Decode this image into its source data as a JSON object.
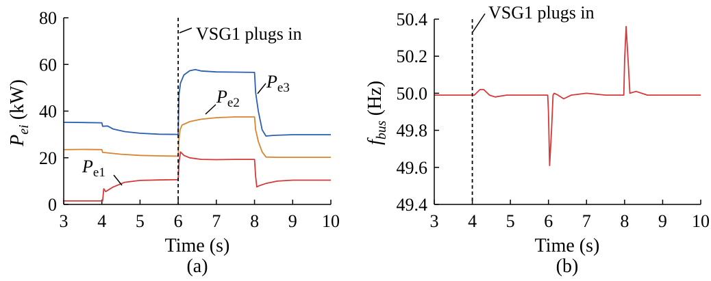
{
  "chart_data": [
    {
      "type": "line",
      "caption": "(a)",
      "xlabel": "Time (s)",
      "ylabel": {
        "main": "P",
        "sub": "ei",
        "unit": " (kW)"
      },
      "xlim": [
        3,
        10
      ],
      "ylim": [
        0,
        80
      ],
      "xticks": [
        3,
        4,
        5,
        6,
        7,
        8,
        9,
        10
      ],
      "yticks": [
        0,
        20,
        40,
        60,
        80
      ],
      "event": {
        "x": 6,
        "label": "VSG1 plugs in"
      },
      "series": [
        {
          "name": "P_e3",
          "label_main": "P",
          "label_sub": "e3",
          "color": "#2a5fb0",
          "points": [
            [
              3,
              35.2
            ],
            [
              3.5,
              35.1
            ],
            [
              4.0,
              35.0
            ],
            [
              4.02,
              33.5
            ],
            [
              4.15,
              33.6
            ],
            [
              4.3,
              32.3
            ],
            [
              4.6,
              31.2
            ],
            [
              5.0,
              30.5
            ],
            [
              5.5,
              30.1
            ],
            [
              6.0,
              30.0
            ],
            [
              6.02,
              47
            ],
            [
              6.06,
              52
            ],
            [
              6.15,
              55.5
            ],
            [
              6.3,
              57.3
            ],
            [
              6.45,
              57.8
            ],
            [
              6.6,
              57.2
            ],
            [
              7.0,
              56.8
            ],
            [
              7.5,
              56.7
            ],
            [
              8.0,
              56.6
            ],
            [
              8.03,
              48
            ],
            [
              8.1,
              40
            ],
            [
              8.2,
              32
            ],
            [
              8.3,
              29.3
            ],
            [
              8.5,
              29.6
            ],
            [
              9.0,
              29.9
            ],
            [
              10,
              29.9
            ]
          ]
        },
        {
          "name": "P_e2",
          "label_main": "P",
          "label_sub": "e2",
          "color": "#d9842e",
          "points": [
            [
              3,
              23.5
            ],
            [
              3.5,
              23.6
            ],
            [
              4.0,
              23.5
            ],
            [
              4.02,
              22.3
            ],
            [
              4.2,
              22.0
            ],
            [
              4.5,
              21.5
            ],
            [
              5.0,
              21.0
            ],
            [
              5.5,
              20.8
            ],
            [
              6.0,
              20.7
            ],
            [
              6.02,
              28
            ],
            [
              6.05,
              32
            ],
            [
              6.1,
              34.0
            ],
            [
              6.3,
              35.5
            ],
            [
              6.6,
              36.5
            ],
            [
              7.0,
              37.2
            ],
            [
              7.5,
              37.5
            ],
            [
              8.0,
              37.5
            ],
            [
              8.03,
              32
            ],
            [
              8.1,
              27
            ],
            [
              8.2,
              22.5
            ],
            [
              8.3,
              20.3
            ],
            [
              8.6,
              20.2
            ],
            [
              10,
              20.2
            ]
          ]
        },
        {
          "name": "P_e1",
          "label_main": "P",
          "label_sub": "e1",
          "color": "#d43838",
          "points": [
            [
              3,
              1.5
            ],
            [
              3.5,
              1.5
            ],
            [
              4.0,
              1.5
            ],
            [
              4.02,
              1.5
            ],
            [
              4.05,
              6.7
            ],
            [
              4.1,
              5.5
            ],
            [
              4.3,
              7.5
            ],
            [
              4.6,
              9.5
            ],
            [
              5.0,
              10.3
            ],
            [
              5.5,
              10.5
            ],
            [
              6.0,
              10.6
            ],
            [
              6.02,
              18
            ],
            [
              6.06,
              22.5
            ],
            [
              6.15,
              21.0
            ],
            [
              6.3,
              20.0
            ],
            [
              6.6,
              19.3
            ],
            [
              7.0,
              19.2
            ],
            [
              7.5,
              19.3
            ],
            [
              8.0,
              19.3
            ],
            [
              8.03,
              12
            ],
            [
              8.06,
              7.5
            ],
            [
              8.12,
              8.0
            ],
            [
              8.3,
              9.0
            ],
            [
              8.6,
              10.0
            ],
            [
              9.0,
              10.4
            ],
            [
              10,
              10.4
            ]
          ]
        }
      ]
    },
    {
      "type": "line",
      "caption": "(b)",
      "xlabel": "Time (s)",
      "ylabel": {
        "main": "f",
        "sub": "bus",
        "unit": " (Hz)"
      },
      "xlim": [
        3,
        10
      ],
      "ylim": [
        49.4,
        50.4
      ],
      "xticks": [
        3,
        4,
        5,
        6,
        7,
        8,
        9,
        10
      ],
      "yticks": [
        "49.4",
        "49.6",
        "49.8",
        "50.0",
        "50.2",
        "50.4"
      ],
      "event": {
        "x": 4,
        "label": "VSG1 plugs in"
      },
      "series": [
        {
          "name": "f_bus",
          "color": "#d43838",
          "points": [
            [
              3,
              49.99
            ],
            [
              3.5,
              49.99
            ],
            [
              4.0,
              49.99
            ],
            [
              4.05,
              49.99
            ],
            [
              4.2,
              50.02
            ],
            [
              4.3,
              50.02
            ],
            [
              4.45,
              49.99
            ],
            [
              4.6,
              49.98
            ],
            [
              4.9,
              49.99
            ],
            [
              5.5,
              49.99
            ],
            [
              5.98,
              49.99
            ],
            [
              6.0,
              49.9
            ],
            [
              6.03,
              49.61
            ],
            [
              6.08,
              49.8
            ],
            [
              6.12,
              49.99
            ],
            [
              6.15,
              50.0
            ],
            [
              6.25,
              49.99
            ],
            [
              6.4,
              49.97
            ],
            [
              6.6,
              49.99
            ],
            [
              7.0,
              50.0
            ],
            [
              7.5,
              49.99
            ],
            [
              7.98,
              49.99
            ],
            [
              8.0,
              50.18
            ],
            [
              8.04,
              50.36
            ],
            [
              8.1,
              50.15
            ],
            [
              8.14,
              50.0
            ],
            [
              8.3,
              50.01
            ],
            [
              8.6,
              49.99
            ],
            [
              9.0,
              49.99
            ],
            [
              10,
              49.99
            ]
          ]
        }
      ]
    }
  ]
}
